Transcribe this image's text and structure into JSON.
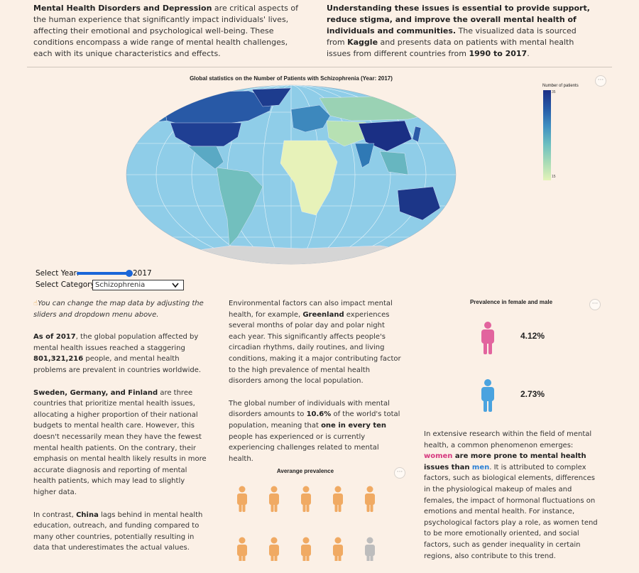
{
  "intro": {
    "left": {
      "strong": "Mental Health Disorders and Depression",
      "text": " are critical aspects of the human experience that significantly impact individuals' lives, affecting their emotional and psychological well-being. These conditions encompass a wide range of mental health challenges, each with its unique characteristics and effects."
    },
    "right": {
      "strong": "Understanding these issues is essential to provide support, reduce stigma, and improve the overall mental health of individuals and communities.",
      "text1": " The visualized data is sourced from ",
      "source": "Kaggle",
      "text2": " and presents data on patients with mental health issues from different countries from ",
      "years": "1990 to 2017",
      "text3": "."
    }
  },
  "map": {
    "title": "Global statistics on the Number of Patients with Schizophrenia (Year: 2017)",
    "legend_title": "Number of patients",
    "legend_max": "35",
    "legend_min": "15",
    "menu": "···"
  },
  "controls": {
    "year_label": "Select Year:",
    "year_value": "2017",
    "year_slider_fraction": 1.0,
    "category_label": "Select Category:",
    "category_value": "Schizophrenia"
  },
  "col1": {
    "tip": "You can change the map data by adjusting the sliders and dropdown menu above.",
    "p1_a": "As of 2017",
    "p1_b": ", the global population affected by mental health issues reached a staggering ",
    "p1_c": "801,321,216",
    "p1_d": " people, and mental health problems are prevalent in countries worldwide.",
    "p2_a": "Sweden, Germany, and Finland",
    "p2_b": " are three countries that prioritize mental health issues, allocating a higher proportion of their national budgets to mental health care. However, this doesn't necessarily mean they have the fewest mental health patients. On the contrary, their emphasis on mental health likely results in more accurate diagnosis and reporting of mental health patients, which may lead to slightly higher data.",
    "p3_a": "In contrast, ",
    "p3_b": "China",
    "p3_c": " lags behind in mental health education, outreach, and funding compared to many other countries, potentially resulting in data that underestimates the actual values."
  },
  "col2": {
    "p1_a": "Environmental factors can also impact mental health, for example, ",
    "p1_b": "Greenland",
    "p1_c": " experiences several months of polar day and polar night each year. This significantly affects people's circadian rhythms, daily routines, and living conditions, making it a major contributing factor to the high prevalence of mental health disorders among the local population.",
    "p2_a": "The global number of individuals with mental disorders amounts to ",
    "p2_b": "10.6%",
    "p2_c": " of the world's total population, meaning that ",
    "p2_d": "one in every ten",
    "p2_e": " people has experienced or is currently experiencing challenges related to mental health.",
    "chart_title": "Averange prevalence",
    "menu": "···"
  },
  "col3": {
    "chart_title": "Prevalence in female and male",
    "female_pct": "4.12%",
    "male_pct": "2.73%",
    "menu": "···",
    "p1_a": "In extensive research within the field of mental health, a common phenomenon emerges: ",
    "p1_women": "women",
    "p1_b": " are more prone to mental health issues than ",
    "p1_men": "men",
    "p1_c": ". It is attributed to complex factors, such as biological elements, differences in the physiological makeup of males and females, the impact of hormonal fluctuations on emotions and mental health. For instance, psychological factors play a role, as women tend to be more emotionally oriented, and social factors, such as gender inequality in certain regions, also contribute to this trend."
  },
  "colors": {
    "background": "#fbf0e6",
    "ocean": "#8fcde8",
    "female": "#e2649e",
    "male": "#4aa3df",
    "person": "#f0aa63",
    "person_inactive": "#bdbdbd",
    "women_text": "#d6377e",
    "men_text": "#2a7fd4"
  },
  "icons": {
    "hand": "pointing-hand-icon",
    "person": "person-icon",
    "menu": "more-options-icon"
  },
  "chart_data": [
    {
      "type": "pictogram",
      "title": "Averange prevalence",
      "visible_icons": 10,
      "highlighted_icons": 9
    },
    {
      "type": "pictogram",
      "title": "Prevalence in female and male",
      "categories": [
        "female",
        "male"
      ],
      "values": [
        4.12,
        2.73
      ],
      "unit": "%"
    }
  ]
}
